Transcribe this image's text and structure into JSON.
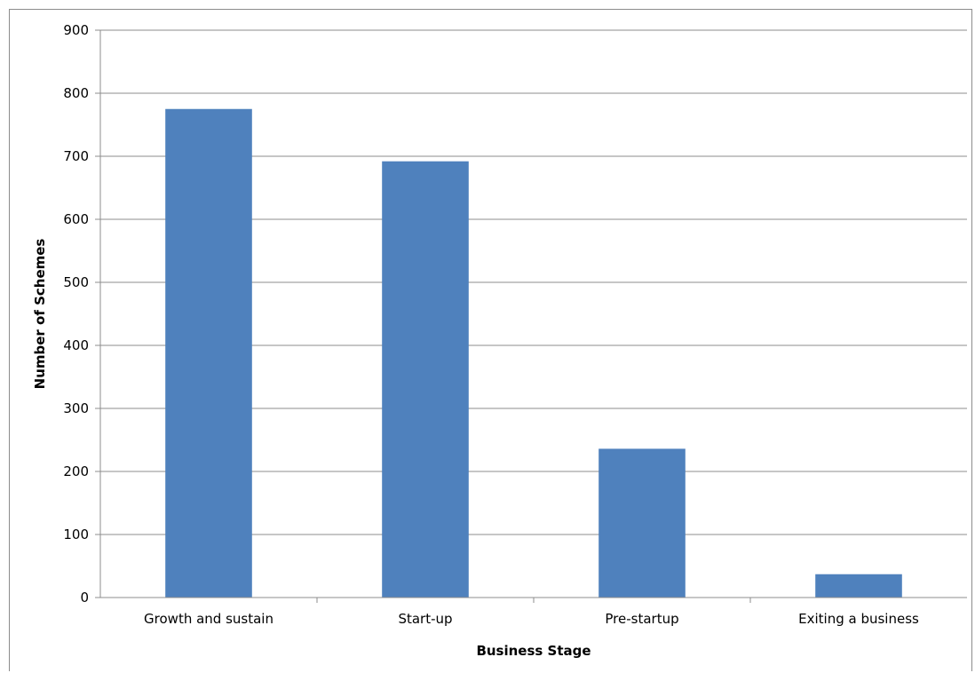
{
  "chart_data": {
    "type": "bar",
    "title": "",
    "xlabel": "Business Stage",
    "ylabel": "Number of Schemes",
    "categories": [
      "Growth and sustain",
      "Start-up",
      "Pre-startup",
      "Exiting a business"
    ],
    "values": [
      775,
      692,
      236,
      37
    ],
    "ylim": [
      0,
      900
    ],
    "yticks": [
      "0",
      "100",
      "200",
      "300",
      "400",
      "500",
      "600",
      "700",
      "800",
      "900"
    ],
    "grid": true,
    "legend": "none",
    "bar_color": "#4f81bd",
    "grid_color": "#8c8c8c"
  }
}
